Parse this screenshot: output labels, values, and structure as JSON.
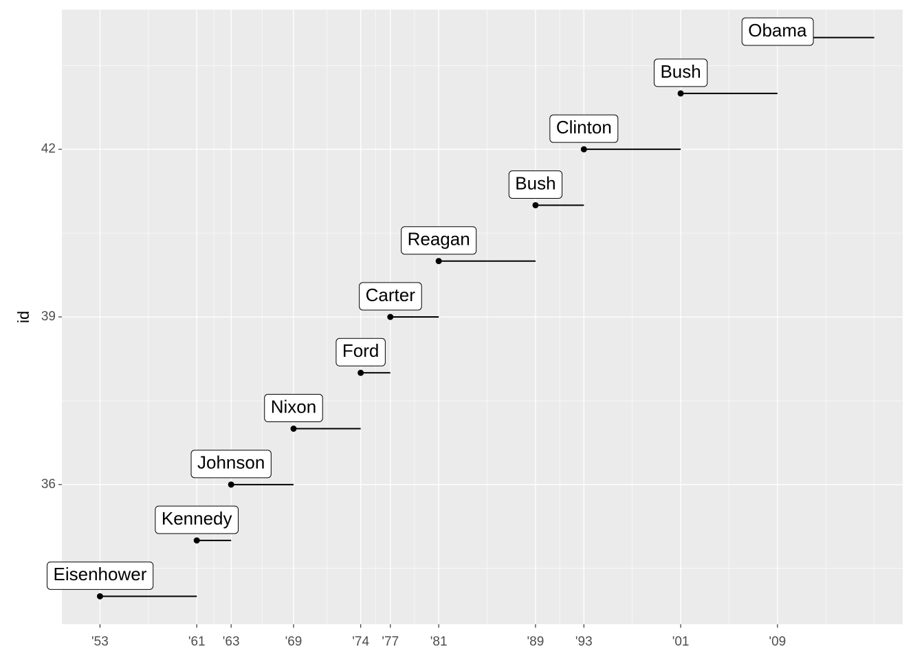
{
  "chart_data": {
    "type": "segment",
    "y_label": "id",
    "names": [
      "Eisenhower",
      "Kennedy",
      "Johnson",
      "Nixon",
      "Ford",
      "Carter",
      "Reagan",
      "Bush",
      "Clinton",
      "Bush",
      "Obama"
    ],
    "ids": [
      34,
      35,
      36,
      37,
      38,
      39,
      40,
      41,
      42,
      43,
      44
    ],
    "start": [
      1953.05,
      1961.05,
      1963.89,
      1969.05,
      1974.6,
      1977.05,
      1981.05,
      1989.05,
      1993.05,
      2001.05,
      2009.05
    ],
    "end": [
      1961.05,
      1963.89,
      1969.05,
      1974.6,
      1977.05,
      1981.05,
      1989.05,
      1993.05,
      2001.05,
      2009.05,
      2017.05
    ],
    "xlim": [
      1949.9,
      2019.4
    ],
    "ylim": [
      33.5,
      44.5
    ],
    "xticks": [
      {
        "value": 1953.05,
        "label": "'53"
      },
      {
        "value": 1961.05,
        "label": "'61"
      },
      {
        "value": 1963.89,
        "label": "'63"
      },
      {
        "value": 1969.05,
        "label": "'69"
      },
      {
        "value": 1974.6,
        "label": "'74"
      },
      {
        "value": 1977.05,
        "label": "'77"
      },
      {
        "value": 1981.05,
        "label": "'81"
      },
      {
        "value": 1989.05,
        "label": "'89"
      },
      {
        "value": 1993.05,
        "label": "'93"
      },
      {
        "value": 2001.05,
        "label": "'01"
      },
      {
        "value": 2009.05,
        "label": "'09"
      }
    ],
    "yticks": [
      36,
      39,
      42
    ],
    "grid": true,
    "color": "#000000"
  }
}
